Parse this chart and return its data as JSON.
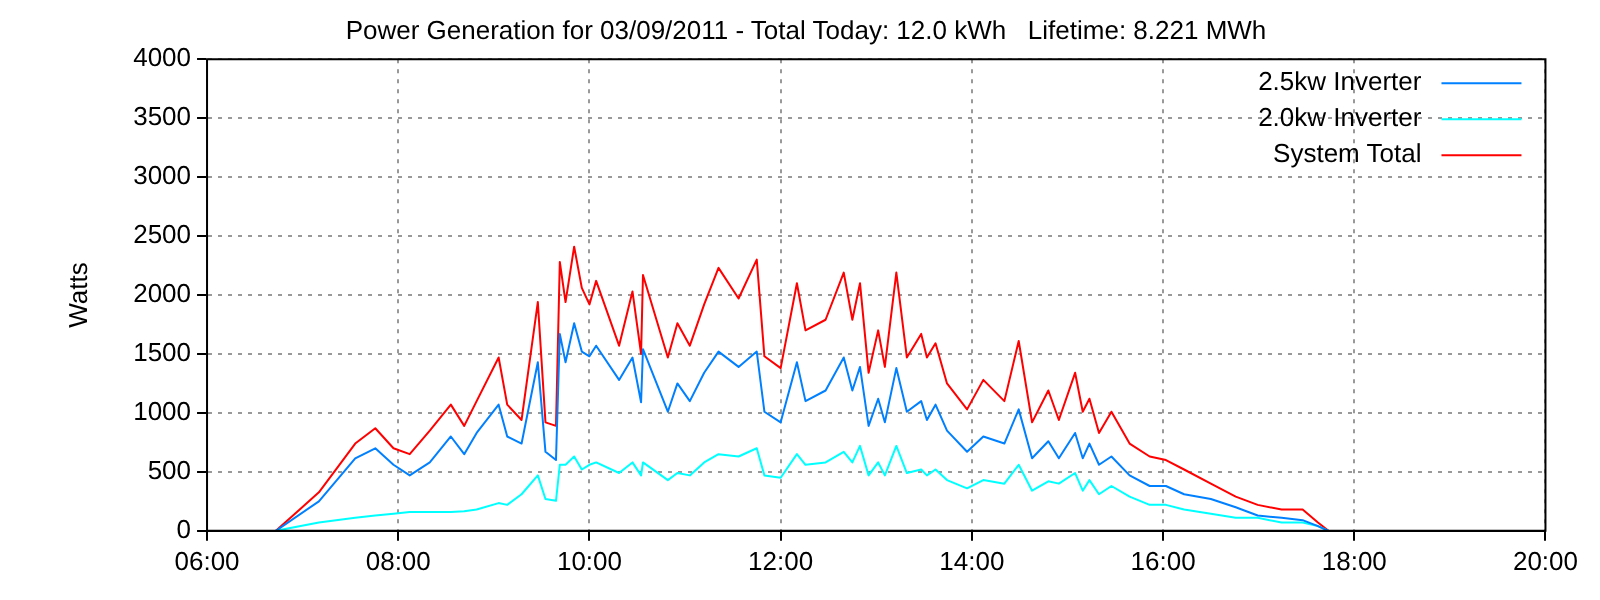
{
  "chart_data": {
    "type": "line",
    "title": "Power Generation for 03/09/2011 - Total Today: 12.0 kWh   Lifetime: 8.221 MWh",
    "ylabel": "Watts",
    "x": [
      6.72,
      7.17,
      7.55,
      7.76,
      7.95,
      8.12,
      8.33,
      8.55,
      8.69,
      8.82,
      9.05,
      9.14,
      9.29,
      9.46,
      9.54,
      9.65,
      9.69,
      9.75,
      9.84,
      9.92,
      10.0,
      10.07,
      10.31,
      10.45,
      10.54,
      10.56,
      10.82,
      10.92,
      11.05,
      11.2,
      11.35,
      11.56,
      11.75,
      11.83,
      12.0,
      12.17,
      12.26,
      12.47,
      12.66,
      12.75,
      12.83,
      12.92,
      13.02,
      13.09,
      13.21,
      13.32,
      13.47,
      13.53,
      13.62,
      13.74,
      13.95,
      14.12,
      14.34,
      14.49,
      14.63,
      14.8,
      14.91,
      15.08,
      15.16,
      15.23,
      15.33,
      15.46,
      15.65,
      15.86,
      16.03,
      16.22,
      16.5,
      16.76,
      16.99,
      17.24,
      17.46,
      17.62,
      17.73
    ],
    "series": [
      {
        "name": "2.5kw Inverter",
        "color": "#0080ff",
        "values": [
          0,
          250,
          615,
          700,
          560,
          470,
          580,
          800,
          650,
          830,
          1070,
          800,
          740,
          1430,
          670,
          600,
          1670,
          1430,
          1760,
          1520,
          1480,
          1570,
          1280,
          1470,
          1090,
          1540,
          1010,
          1250,
          1100,
          1340,
          1520,
          1390,
          1520,
          1010,
          920,
          1430,
          1100,
          1190,
          1470,
          1190,
          1390,
          890,
          1120,
          920,
          1380,
          1010,
          1100,
          940,
          1070,
          850,
          670,
          800,
          740,
          1030,
          615,
          760,
          615,
          830,
          615,
          740,
          560,
          630,
          470,
          380,
          380,
          310,
          270,
          200,
          130,
          110,
          90,
          40,
          0
        ]
      },
      {
        "name": "2.0kw Inverter",
        "color": "#00ffff",
        "values": [
          0,
          70,
          110,
          130,
          145,
          160,
          160,
          160,
          165,
          180,
          235,
          220,
          310,
          470,
          270,
          255,
          560,
          560,
          630,
          520,
          560,
          580,
          490,
          580,
          470,
          580,
          430,
          490,
          470,
          580,
          650,
          630,
          700,
          470,
          450,
          650,
          560,
          580,
          670,
          580,
          720,
          470,
          580,
          470,
          720,
          490,
          520,
          470,
          520,
          430,
          360,
          430,
          400,
          560,
          340,
          420,
          400,
          490,
          340,
          430,
          310,
          380,
          290,
          220,
          220,
          180,
          145,
          110,
          110,
          70,
          70,
          40,
          0
        ]
      },
      {
        "name": "System Total",
        "color": "#ff0000",
        "values": [
          0,
          326,
          740,
          870,
          700,
          650,
          850,
          1070,
          890,
          1100,
          1470,
          1070,
          940,
          1940,
          920,
          890,
          2280,
          1940,
          2410,
          2060,
          1920,
          2120,
          1570,
          2030,
          1500,
          2170,
          1470,
          1760,
          1570,
          1920,
          2230,
          1970,
          2300,
          1480,
          1380,
          2100,
          1700,
          1790,
          2190,
          1790,
          2100,
          1340,
          1700,
          1390,
          2190,
          1470,
          1670,
          1470,
          1590,
          1250,
          1030,
          1280,
          1100,
          1610,
          920,
          1190,
          940,
          1340,
          1010,
          1120,
          830,
          1010,
          740,
          630,
          600,
          520,
          400,
          290,
          220,
          180,
          180,
          70,
          0
        ]
      }
    ],
    "xlim": [
      6,
      20
    ],
    "xticks": [
      {
        "value": 6,
        "label": "06:00"
      },
      {
        "value": 8,
        "label": "08:00"
      },
      {
        "value": 10,
        "label": "10:00"
      },
      {
        "value": 12,
        "label": "12:00"
      },
      {
        "value": 14,
        "label": "14:00"
      },
      {
        "value": 16,
        "label": "16:00"
      },
      {
        "value": 18,
        "label": "18:00"
      },
      {
        "value": 20,
        "label": "20:00"
      }
    ],
    "ylim": [
      0,
      4000
    ],
    "yticks": [
      0,
      500,
      1000,
      1500,
      2000,
      2500,
      3000,
      3500,
      4000
    ],
    "grid": true,
    "legend": "top right"
  }
}
